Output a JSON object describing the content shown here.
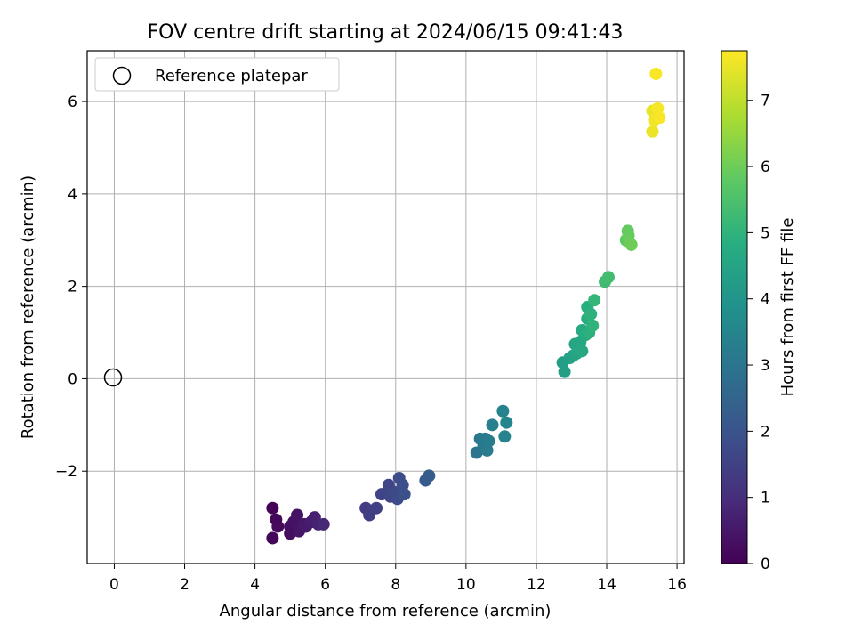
{
  "chart_data": {
    "type": "scatter",
    "title": "FOV centre drift starting at 2024/06/15 09:41:43",
    "xlabel": "Angular distance from reference (arcmin)",
    "ylabel": "Rotation from reference (arcmin)",
    "xlim": [
      -0.77,
      16.2
    ],
    "ylim": [
      -4.0,
      7.1
    ],
    "xticks": [
      0,
      2,
      4,
      6,
      8,
      10,
      12,
      14,
      16
    ],
    "yticks": [
      -2,
      0,
      2,
      4,
      6
    ],
    "grid": true,
    "legend": {
      "position": "top-left",
      "entries": [
        "Reference platepar"
      ]
    },
    "reference": {
      "x": 0,
      "y": 0,
      "label": "Reference platepar"
    },
    "colorbar": {
      "label": "Hours from first FF file",
      "range": [
        0,
        7.75
      ],
      "ticks": [
        0,
        1,
        2,
        3,
        4,
        5,
        6,
        7
      ],
      "colormap": "viridis"
    },
    "points": [
      {
        "x": 4.5,
        "y": -2.8,
        "c": 0.05
      },
      {
        "x": 4.5,
        "y": -3.45,
        "c": 0.1
      },
      {
        "x": 4.6,
        "y": -3.05,
        "c": 0.15
      },
      {
        "x": 4.65,
        "y": -3.2,
        "c": 0.2
      },
      {
        "x": 5.0,
        "y": -3.2,
        "c": 0.3
      },
      {
        "x": 5.1,
        "y": -3.1,
        "c": 0.35
      },
      {
        "x": 5.2,
        "y": -2.95,
        "c": 0.4
      },
      {
        "x": 5.25,
        "y": -3.3,
        "c": 0.45
      },
      {
        "x": 5.4,
        "y": -3.15,
        "c": 0.5
      },
      {
        "x": 5.45,
        "y": -3.2,
        "c": 0.55
      },
      {
        "x": 5.6,
        "y": -3.1,
        "c": 0.6
      },
      {
        "x": 5.7,
        "y": -3.0,
        "c": 0.65
      },
      {
        "x": 5.8,
        "y": -3.15,
        "c": 0.75
      },
      {
        "x": 5.95,
        "y": -3.15,
        "c": 0.85
      },
      {
        "x": 5.0,
        "y": -3.35,
        "c": 0.3
      },
      {
        "x": 7.15,
        "y": -2.8,
        "c": 1.4
      },
      {
        "x": 7.25,
        "y": -2.95,
        "c": 1.45
      },
      {
        "x": 7.45,
        "y": -2.8,
        "c": 1.5
      },
      {
        "x": 7.6,
        "y": -2.5,
        "c": 1.55
      },
      {
        "x": 7.8,
        "y": -2.3,
        "c": 1.6
      },
      {
        "x": 7.85,
        "y": -2.55,
        "c": 1.65
      },
      {
        "x": 7.95,
        "y": -2.45,
        "c": 1.7
      },
      {
        "x": 8.05,
        "y": -2.6,
        "c": 1.75
      },
      {
        "x": 8.1,
        "y": -2.15,
        "c": 1.8
      },
      {
        "x": 8.2,
        "y": -2.3,
        "c": 1.85
      },
      {
        "x": 8.25,
        "y": -2.5,
        "c": 1.9
      },
      {
        "x": 8.85,
        "y": -2.2,
        "c": 2.2
      },
      {
        "x": 8.95,
        "y": -2.1,
        "c": 2.25
      },
      {
        "x": 10.3,
        "y": -1.6,
        "c": 3.0
      },
      {
        "x": 10.4,
        "y": -1.3,
        "c": 3.05
      },
      {
        "x": 10.5,
        "y": -1.45,
        "c": 3.1
      },
      {
        "x": 10.55,
        "y": -1.3,
        "c": 3.15
      },
      {
        "x": 10.6,
        "y": -1.55,
        "c": 3.2
      },
      {
        "x": 10.65,
        "y": -1.35,
        "c": 3.25
      },
      {
        "x": 10.75,
        "y": -1.0,
        "c": 3.3
      },
      {
        "x": 11.05,
        "y": -0.7,
        "c": 3.4
      },
      {
        "x": 11.1,
        "y": -1.25,
        "c": 3.45
      },
      {
        "x": 11.15,
        "y": -0.95,
        "c": 3.5
      },
      {
        "x": 12.75,
        "y": 0.35,
        "c": 4.3
      },
      {
        "x": 12.8,
        "y": 0.15,
        "c": 4.35
      },
      {
        "x": 12.95,
        "y": 0.45,
        "c": 4.4
      },
      {
        "x": 13.05,
        "y": 0.5,
        "c": 4.45
      },
      {
        "x": 13.1,
        "y": 0.75,
        "c": 4.5
      },
      {
        "x": 13.15,
        "y": 0.55,
        "c": 4.55
      },
      {
        "x": 13.2,
        "y": 0.65,
        "c": 4.6
      },
      {
        "x": 13.25,
        "y": 0.8,
        "c": 4.62
      },
      {
        "x": 13.3,
        "y": 0.6,
        "c": 4.65
      },
      {
        "x": 13.3,
        "y": 1.05,
        "c": 4.7
      },
      {
        "x": 13.4,
        "y": 0.95,
        "c": 4.75
      },
      {
        "x": 13.45,
        "y": 1.3,
        "c": 4.8
      },
      {
        "x": 13.45,
        "y": 1.55,
        "c": 4.85
      },
      {
        "x": 13.5,
        "y": 1.0,
        "c": 4.9
      },
      {
        "x": 13.55,
        "y": 1.4,
        "c": 4.95
      },
      {
        "x": 13.6,
        "y": 1.15,
        "c": 5.0
      },
      {
        "x": 13.65,
        "y": 1.7,
        "c": 5.1
      },
      {
        "x": 13.95,
        "y": 2.1,
        "c": 5.3
      },
      {
        "x": 14.05,
        "y": 2.2,
        "c": 5.35
      },
      {
        "x": 14.55,
        "y": 3.0,
        "c": 5.8
      },
      {
        "x": 14.6,
        "y": 3.2,
        "c": 5.85
      },
      {
        "x": 14.62,
        "y": 3.1,
        "c": 5.9
      },
      {
        "x": 14.65,
        "y": 2.95,
        "c": 5.95
      },
      {
        "x": 14.7,
        "y": 2.9,
        "c": 6.0
      },
      {
        "x": 15.3,
        "y": 5.8,
        "c": 7.5
      },
      {
        "x": 15.3,
        "y": 5.35,
        "c": 7.55
      },
      {
        "x": 15.35,
        "y": 5.6,
        "c": 7.6
      },
      {
        "x": 15.4,
        "y": 6.6,
        "c": 7.7
      },
      {
        "x": 15.45,
        "y": 5.85,
        "c": 7.65
      },
      {
        "x": 15.5,
        "y": 5.65,
        "c": 7.7
      }
    ]
  }
}
